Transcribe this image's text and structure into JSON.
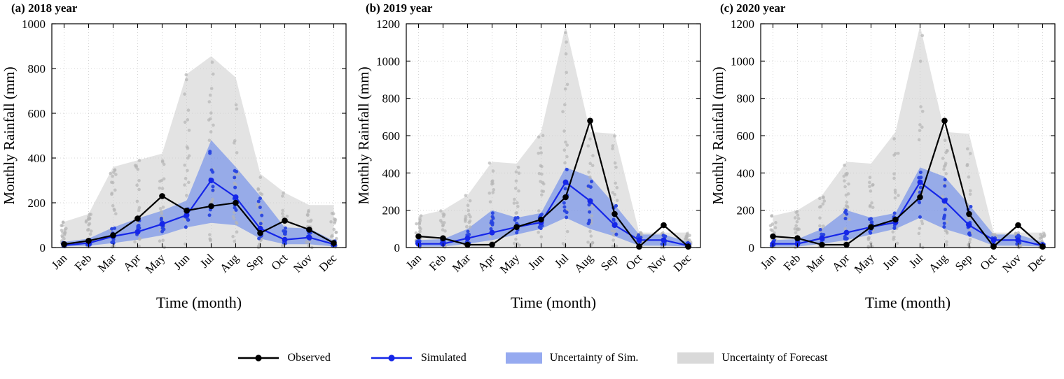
{
  "figure": {
    "ylabel": "Monthly Rainfall (mm)",
    "xlabel": "Time (month)"
  },
  "legend": {
    "items": [
      {
        "label": "Observed",
        "type": "line",
        "color": "#000000"
      },
      {
        "label": "Simulated",
        "type": "line",
        "color": "#1526e8"
      },
      {
        "label": "Uncertainty of Sim.",
        "type": "band",
        "color": "#96aaf0"
      },
      {
        "label": "Uncertainty of Forecast",
        "type": "band",
        "color": "#d9d9d9"
      }
    ]
  },
  "chart_data": [
    {
      "type": "line",
      "title": "(a) 2018 year",
      "xlabel": "Time (month)",
      "ylabel": "Monthly Rainfall (mm)",
      "categories": [
        "Jan",
        "Feb",
        "Mar",
        "Apr",
        "May",
        "Jun",
        "Jul",
        "Aug",
        "Sep",
        "Oct",
        "Nov",
        "Dec"
      ],
      "ylim": [
        0,
        1000
      ],
      "yticks": [
        0,
        200,
        400,
        600,
        800,
        1000
      ],
      "series": [
        {
          "name": "Observed",
          "color": "#000000",
          "values": [
            15,
            30,
            55,
            130,
            230,
            165,
            185,
            200,
            65,
            120,
            80,
            20
          ]
        },
        {
          "name": "Simulated",
          "color": "#1526e8",
          "values": [
            10,
            20,
            50,
            70,
            105,
            145,
            300,
            225,
            85,
            35,
            45,
            15
          ]
        }
      ],
      "bands": [
        {
          "name": "Uncertainty of Forecast",
          "color": "#cccccc",
          "opacity": 0.55,
          "scatter_color": "#b5b5b5",
          "lower": [
            0,
            0,
            0,
            0,
            0,
            0,
            0,
            0,
            0,
            0,
            0,
            0
          ],
          "upper": [
            115,
            150,
            360,
            390,
            420,
            775,
            855,
            760,
            330,
            245,
            190,
            190
          ]
        },
        {
          "name": "Uncertainty of Sim.",
          "color": "#5a7dec",
          "opacity": 0.55,
          "scatter_color": "#2743e0",
          "lower": [
            5,
            8,
            20,
            35,
            55,
            90,
            110,
            100,
            40,
            15,
            15,
            5
          ],
          "upper": [
            25,
            40,
            90,
            130,
            165,
            210,
            480,
            360,
            230,
            90,
            85,
            30
          ]
        }
      ]
    },
    {
      "type": "line",
      "title": "(b) 2019 year",
      "xlabel": "Time (month)",
      "ylabel": "Monthly Rainfall (mm)",
      "categories": [
        "Jan",
        "Feb",
        "Mar",
        "Apr",
        "May",
        "Jun",
        "Jul",
        "Aug",
        "Sep",
        "Oct",
        "Nov",
        "Dec"
      ],
      "ylim": [
        0,
        1200
      ],
      "yticks": [
        0,
        200,
        400,
        600,
        800,
        1000,
        1200
      ],
      "series": [
        {
          "name": "Observed",
          "color": "#000000",
          "values": [
            60,
            50,
            15,
            15,
            110,
            150,
            270,
            680,
            180,
            5,
            120,
            5
          ]
        },
        {
          "name": "Simulated",
          "color": "#1526e8",
          "values": [
            20,
            20,
            50,
            80,
            110,
            135,
            350,
            250,
            120,
            40,
            40,
            10
          ]
        }
      ],
      "bands": [
        {
          "name": "Uncertainty of Forecast",
          "color": "#cccccc",
          "opacity": 0.55,
          "scatter_color": "#b5b5b5",
          "lower": [
            0,
            0,
            0,
            0,
            0,
            0,
            0,
            0,
            0,
            0,
            0,
            0
          ],
          "upper": [
            170,
            200,
            280,
            460,
            450,
            620,
            1190,
            620,
            610,
            80,
            80,
            80
          ]
        },
        {
          "name": "Uncertainty of Sim.",
          "color": "#5a7dec",
          "opacity": 0.55,
          "scatter_color": "#2743e0",
          "lower": [
            5,
            5,
            20,
            40,
            70,
            100,
            160,
            100,
            60,
            10,
            10,
            5
          ],
          "upper": [
            40,
            45,
            100,
            200,
            160,
            185,
            430,
            380,
            230,
            70,
            70,
            30
          ]
        }
      ]
    },
    {
      "type": "line",
      "title": "(c) 2020 year",
      "xlabel": "Time (month)",
      "ylabel": "Monthly Rainfall (mm)",
      "categories": [
        "Jan",
        "Feb",
        "Mar",
        "Apr",
        "May",
        "Jun",
        "Jul",
        "Aug",
        "Sep",
        "Oct",
        "Nov",
        "Dec"
      ],
      "ylim": [
        0,
        1200
      ],
      "yticks": [
        0,
        200,
        400,
        600,
        800,
        1000,
        1200
      ],
      "series": [
        {
          "name": "Observed",
          "color": "#000000",
          "values": [
            60,
            50,
            15,
            15,
            110,
            150,
            270,
            680,
            180,
            5,
            120,
            5
          ]
        },
        {
          "name": "Simulated",
          "color": "#1526e8",
          "values": [
            20,
            20,
            50,
            80,
            110,
            135,
            350,
            250,
            120,
            40,
            40,
            10
          ]
        }
      ],
      "bands": [
        {
          "name": "Uncertainty of Forecast",
          "color": "#cccccc",
          "opacity": 0.55,
          "scatter_color": "#b5b5b5",
          "lower": [
            0,
            0,
            0,
            0,
            0,
            0,
            0,
            0,
            0,
            0,
            0,
            0
          ],
          "upper": [
            170,
            200,
            280,
            460,
            450,
            620,
            1190,
            620,
            610,
            80,
            80,
            80
          ]
        },
        {
          "name": "Uncertainty of Sim.",
          "color": "#5a7dec",
          "opacity": 0.55,
          "scatter_color": "#2743e0",
          "lower": [
            5,
            5,
            20,
            40,
            70,
            100,
            160,
            100,
            60,
            10,
            10,
            5
          ],
          "upper": [
            40,
            45,
            100,
            200,
            160,
            185,
            430,
            380,
            230,
            70,
            70,
            30
          ]
        }
      ]
    }
  ]
}
